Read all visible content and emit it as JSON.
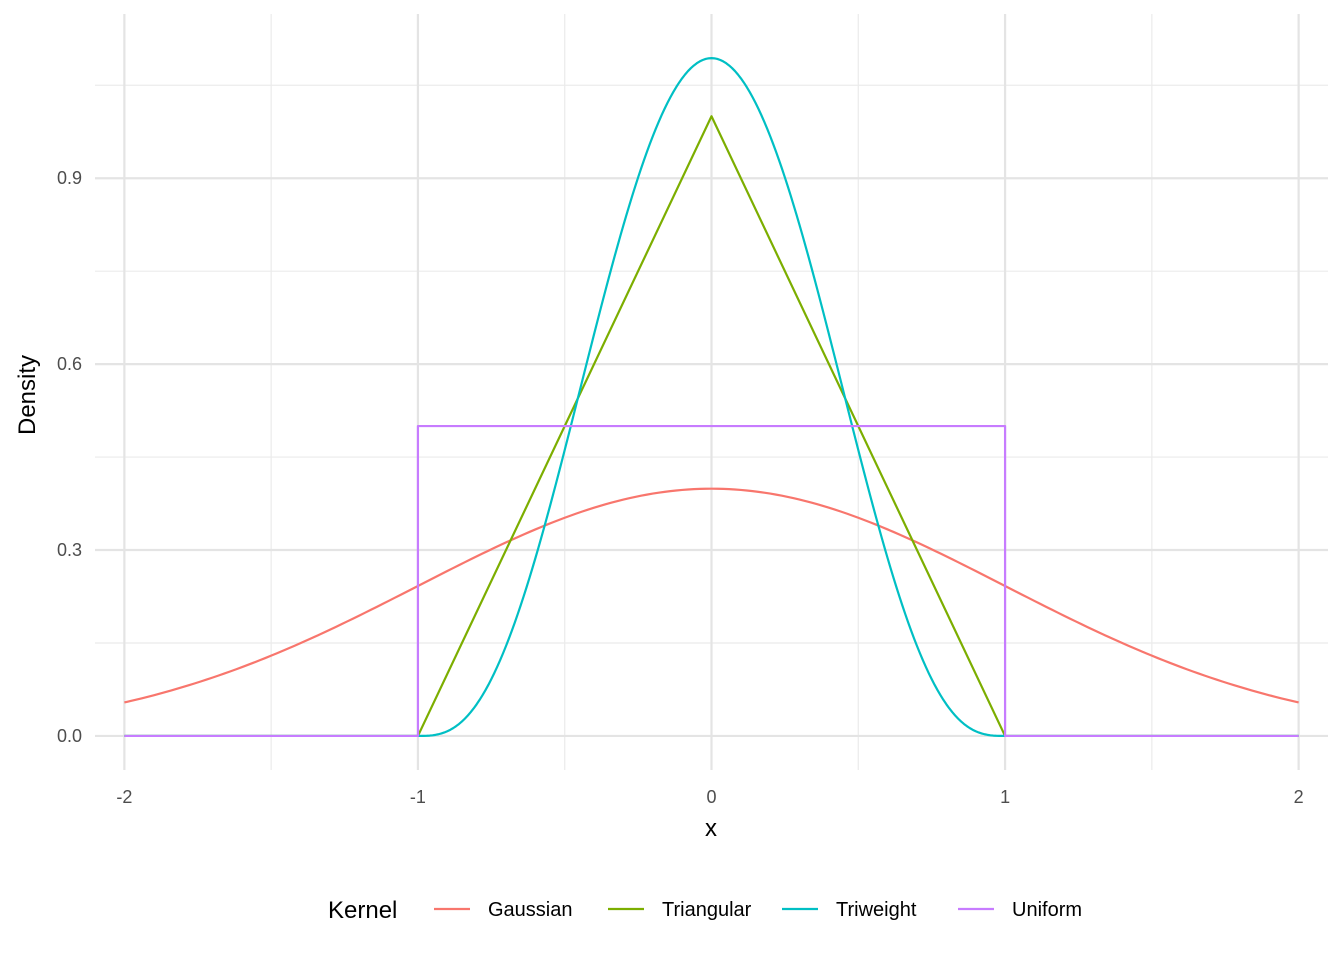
{
  "chart_data": {
    "type": "line",
    "xlabel": "x",
    "ylabel": "Density",
    "xlim": [
      -2.1,
      2.1
    ],
    "ylim": [
      -0.055,
      1.165
    ],
    "x_ticks": [
      -2,
      -1,
      0,
      1,
      2
    ],
    "x_tick_labels": [
      "-2",
      "-1",
      "0",
      "1",
      "2"
    ],
    "y_ticks": [
      0.0,
      0.3,
      0.6,
      0.9
    ],
    "y_tick_labels": [
      "0.0",
      "0.3",
      "0.6",
      "0.9"
    ],
    "grid": true,
    "legend": {
      "title": "Kernel",
      "position": "bottom"
    },
    "series": [
      {
        "name": "Gaussian",
        "color": "#F8766D",
        "x": [
          -2,
          -1.8,
          -1.6,
          -1.4,
          -1.2,
          -1,
          -0.8,
          -0.6,
          -0.4,
          -0.2,
          0,
          0.2,
          0.4,
          0.6,
          0.8,
          1,
          1.2,
          1.4,
          1.6,
          1.8,
          2
        ],
        "y": [
          0.054,
          0.079,
          0.111,
          0.15,
          0.194,
          0.242,
          0.29,
          0.333,
          0.368,
          0.391,
          0.399,
          0.391,
          0.368,
          0.333,
          0.29,
          0.242,
          0.194,
          0.15,
          0.111,
          0.079,
          0.054
        ]
      },
      {
        "name": "Triangular",
        "color": "#7CAE00",
        "x": [
          -2,
          -1,
          0,
          1,
          2
        ],
        "y": [
          0,
          0,
          1,
          0,
          0
        ]
      },
      {
        "name": "Triweight",
        "color": "#00BFC4",
        "x": [
          -2,
          -1,
          -0.9,
          -0.8,
          -0.7,
          -0.6,
          -0.5,
          -0.4,
          -0.3,
          -0.2,
          -0.1,
          0,
          0.1,
          0.2,
          0.3,
          0.4,
          0.5,
          0.6,
          0.7,
          0.8,
          0.9,
          1,
          2
        ],
        "y": [
          0,
          0,
          0.008,
          0.051,
          0.129,
          0.286,
          0.464,
          0.649,
          0.823,
          0.97,
          1.06,
          1.094,
          1.06,
          0.97,
          0.823,
          0.649,
          0.464,
          0.286,
          0.129,
          0.051,
          0.008,
          0,
          0
        ]
      },
      {
        "name": "Uniform",
        "color": "#C77CFF",
        "x": [
          -2,
          -1,
          -1,
          1,
          1,
          2
        ],
        "y": [
          0,
          0,
          0.5,
          0.5,
          0,
          0
        ]
      }
    ]
  }
}
